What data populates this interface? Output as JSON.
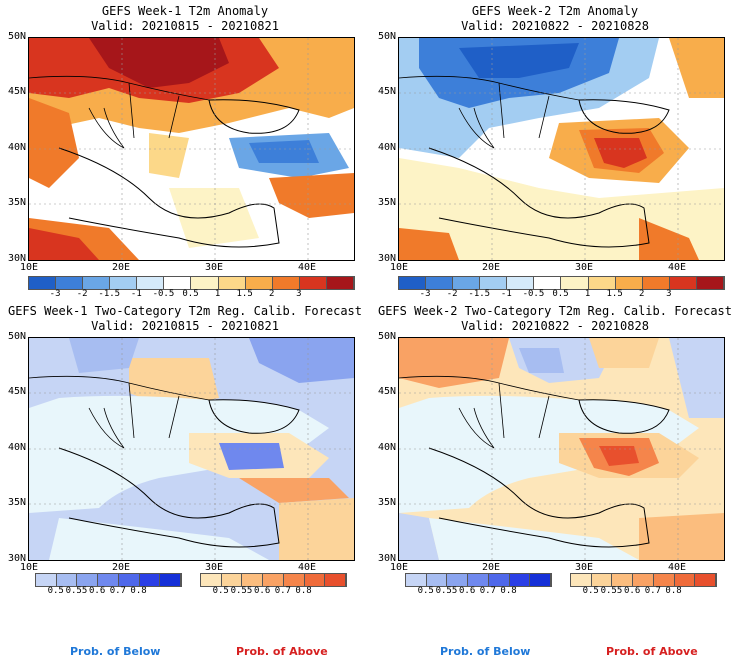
{
  "panels": [
    {
      "title1": "GEFS Week-1 T2m Anomaly",
      "title2": "Valid: 20210815 - 20210821"
    },
    {
      "title1": "GEFS Week-2 T2m Anomaly",
      "title2": "Valid: 20210822 - 20210828"
    },
    {
      "title1": "GEFS Week-1 Two-Category T2m Reg. Calib. Forecast",
      "title2": "Valid: 20210815 - 20210821"
    },
    {
      "title1": "GEFS Week-2 Two-Category T2m Reg. Calib. Forecast",
      "title2": "Valid: 20210822 - 20210828"
    }
  ],
  "axes": {
    "lat_labels": [
      "50N",
      "45N",
      "40N",
      "35N",
      "30N"
    ],
    "lon_labels": [
      "10E",
      "20E",
      "30E",
      "40E"
    ]
  },
  "anomaly_colorbar": {
    "labels": [
      "-3",
      "-2",
      "-1.5",
      "-1",
      "-0.5",
      "0.5",
      "1",
      "1.5",
      "2",
      "3"
    ],
    "colors": [
      "#1f5fc7",
      "#3d7fd9",
      "#6aa6e6",
      "#a3cdf2",
      "#d5eafa",
      "#ffffff",
      "#fdf3c6",
      "#fcd889",
      "#f8ad4b",
      "#f07a2a",
      "#d8351f",
      "#a6161a"
    ]
  },
  "prob_colorbar_below": {
    "labels": [
      "0.5",
      "0.55",
      "0.6",
      "0.7",
      "0.8"
    ],
    "colors": [
      "#c6d5f5",
      "#a7bdf1",
      "#8aa4ef",
      "#6f88ee",
      "#4f68ea",
      "#2b3fe6",
      "#1530d8"
    ]
  },
  "prob_colorbar_above": {
    "labels": [
      "0.5",
      "0.55",
      "0.6",
      "0.7",
      "0.8"
    ],
    "colors": [
      "#fde6ba",
      "#fcd49a",
      "#fbbd7e",
      "#f9a264",
      "#f5854b",
      "#ef6b3a",
      "#e8502d"
    ]
  },
  "footer": {
    "below": "Prob. of Below",
    "above": "Prob. of Above",
    "below_color": "#1f78d8",
    "above_color": "#d62020"
  }
}
